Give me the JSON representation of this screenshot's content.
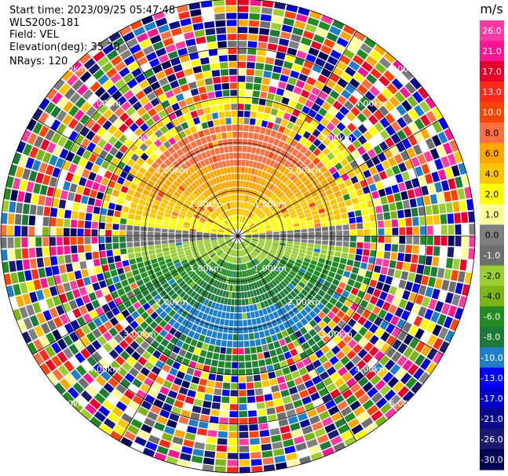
{
  "header": {
    "start_time": "Start time: 2023/09/25 05:47:48",
    "instrument": "WLS200s-181",
    "field": "Field: VEL",
    "elevation": "Elevation(deg): 35.30",
    "nrays": "NRays: 120"
  },
  "chart_data": {
    "type": "heatmap",
    "projection": "polar (PPI scan)",
    "field": "VEL",
    "unit": "m/s",
    "n_rays": 120,
    "range_rings_km": [
      "1.00km",
      "2.00km",
      "3.00km",
      "4.00km",
      "5.00km"
    ],
    "colorbar": {
      "unit": "m/s",
      "tick_labels": [
        "26.0",
        "21.0",
        "17.0",
        "13.0",
        "10.0",
        "8.0",
        "6.0",
        "4.0",
        "2.0",
        "1.0",
        "0.0",
        "-1.0",
        "-2.0",
        "-4.0",
        "-6.0",
        "-8.0",
        "-10.0",
        "-13.0",
        "-17.0",
        "-21.0",
        "-26.0",
        "-30.0"
      ],
      "colors": [
        "#ff3aa0",
        "#ff1493",
        "#e8002a",
        "#ff2a1a",
        "#ff4500",
        "#ff7040",
        "#ffa500",
        "#ffc400",
        "#ffff00",
        "#ffff99",
        "#808080",
        "#6e6e6e",
        "#9acd32",
        "#7cb518",
        "#228b22",
        "#1f7a3a",
        "#1e7fc8",
        "#0000ff",
        "#0000cd",
        "#0a0a8f",
        "#1a1a6e",
        "#000055"
      ]
    },
    "pattern": {
      "near_field_north": "positive velocities (orange/yellow, ~2 to 8 m/s)",
      "near_field_south": "negative velocities (green/blue, ~-2 to -10 m/s)",
      "east_west_band": "near zero (gray)",
      "far_field": "noisy multicolour speckle"
    }
  }
}
